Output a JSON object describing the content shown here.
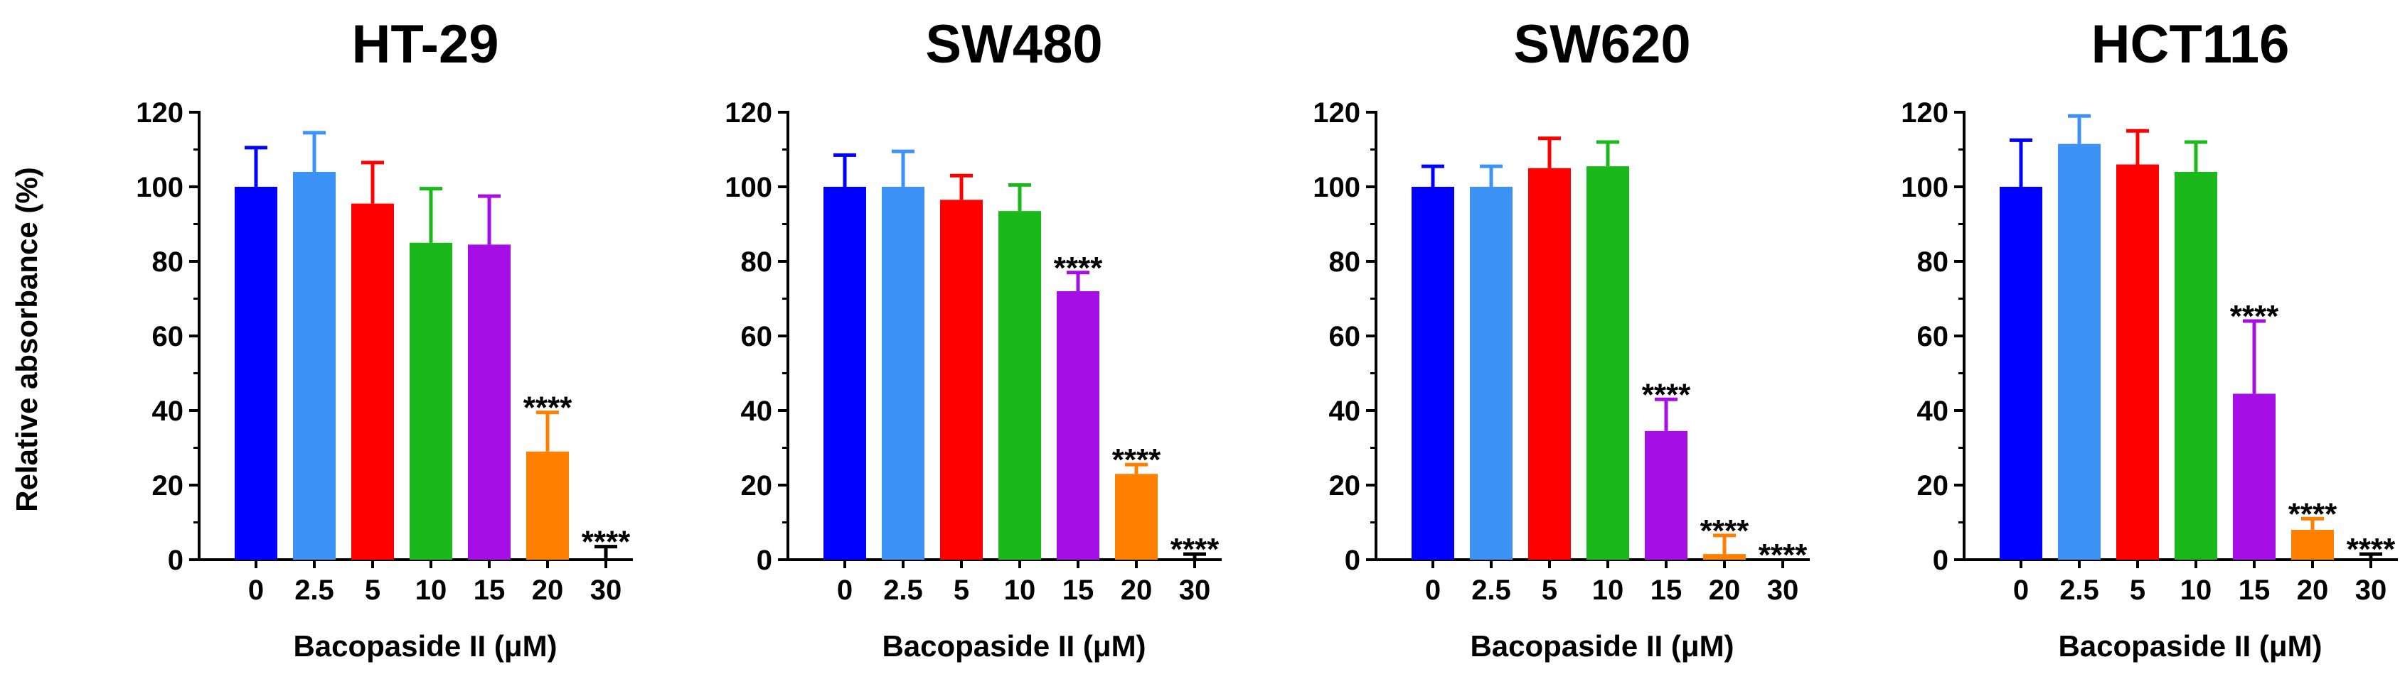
{
  "figure": {
    "ylabel": "Relative absorbance (%)"
  },
  "chart_data": [
    {
      "type": "bar",
      "title": "HT-29",
      "xlabel": "Bacopaside II (μM)",
      "ylabel": "Relative absorbance (%)",
      "ylim": [
        0,
        120
      ],
      "yticks": [
        0,
        20,
        40,
        60,
        80,
        100,
        120
      ],
      "categories": [
        "0",
        "2.5",
        "5",
        "10",
        "15",
        "20",
        "30"
      ],
      "values": [
        100,
        104,
        95.5,
        85,
        84.5,
        29,
        0
      ],
      "errors": [
        10.5,
        10.5,
        11,
        14.5,
        13,
        10.5,
        3.5
      ],
      "significance": [
        "",
        "",
        "",
        "",
        "",
        "****",
        "****"
      ],
      "colors": [
        "#0000ff",
        "#3d93f5",
        "#ff0000",
        "#1ab81a",
        "#a50fe6",
        "#ff7f00",
        "#000000"
      ]
    },
    {
      "type": "bar",
      "title": "SW480",
      "xlabel": "Bacopaside II (μM)",
      "ylabel": "",
      "ylim": [
        0,
        120
      ],
      "yticks": [
        0,
        20,
        40,
        60,
        80,
        100,
        120
      ],
      "categories": [
        "0",
        "2.5",
        "5",
        "10",
        "15",
        "20",
        "30"
      ],
      "values": [
        100,
        100,
        96.5,
        93.5,
        72,
        23,
        0
      ],
      "errors": [
        8.5,
        9.5,
        6.5,
        7,
        5,
        2.5,
        1.5
      ],
      "significance": [
        "",
        "",
        "",
        "",
        "****",
        "****",
        "****"
      ],
      "colors": [
        "#0000ff",
        "#3d93f5",
        "#ff0000",
        "#1ab81a",
        "#a50fe6",
        "#ff7f00",
        "#000000"
      ]
    },
    {
      "type": "bar",
      "title": "SW620",
      "xlabel": "Bacopaside II (μM)",
      "ylabel": "",
      "ylim": [
        0,
        120
      ],
      "yticks": [
        0,
        20,
        40,
        60,
        80,
        100,
        120
      ],
      "categories": [
        "0",
        "2.5",
        "5",
        "10",
        "15",
        "20",
        "30"
      ],
      "values": [
        100,
        100,
        105,
        105.5,
        34.5,
        1.5,
        0
      ],
      "errors": [
        5.5,
        5.5,
        8,
        6.5,
        8.5,
        5,
        0
      ],
      "significance": [
        "",
        "",
        "",
        "",
        "****",
        "****",
        "****"
      ],
      "colors": [
        "#0000ff",
        "#3d93f5",
        "#ff0000",
        "#1ab81a",
        "#a50fe6",
        "#ff7f00",
        "#000000"
      ]
    },
    {
      "type": "bar",
      "title": "HCT116",
      "xlabel": "Bacopaside II (μM)",
      "ylabel": "",
      "ylim": [
        0,
        120
      ],
      "yticks": [
        0,
        20,
        40,
        60,
        80,
        100,
        120
      ],
      "categories": [
        "0",
        "2.5",
        "5",
        "10",
        "15",
        "20",
        "30"
      ],
      "values": [
        100,
        111.5,
        106,
        104,
        44.5,
        8,
        0
      ],
      "errors": [
        12.5,
        7.5,
        9,
        8,
        19.5,
        3,
        1.5
      ],
      "significance": [
        "",
        "",
        "",
        "",
        "****",
        "****",
        "****"
      ],
      "colors": [
        "#0000ff",
        "#3d93f5",
        "#ff0000",
        "#1ab81a",
        "#a50fe6",
        "#ff7f00",
        "#000000"
      ]
    }
  ]
}
